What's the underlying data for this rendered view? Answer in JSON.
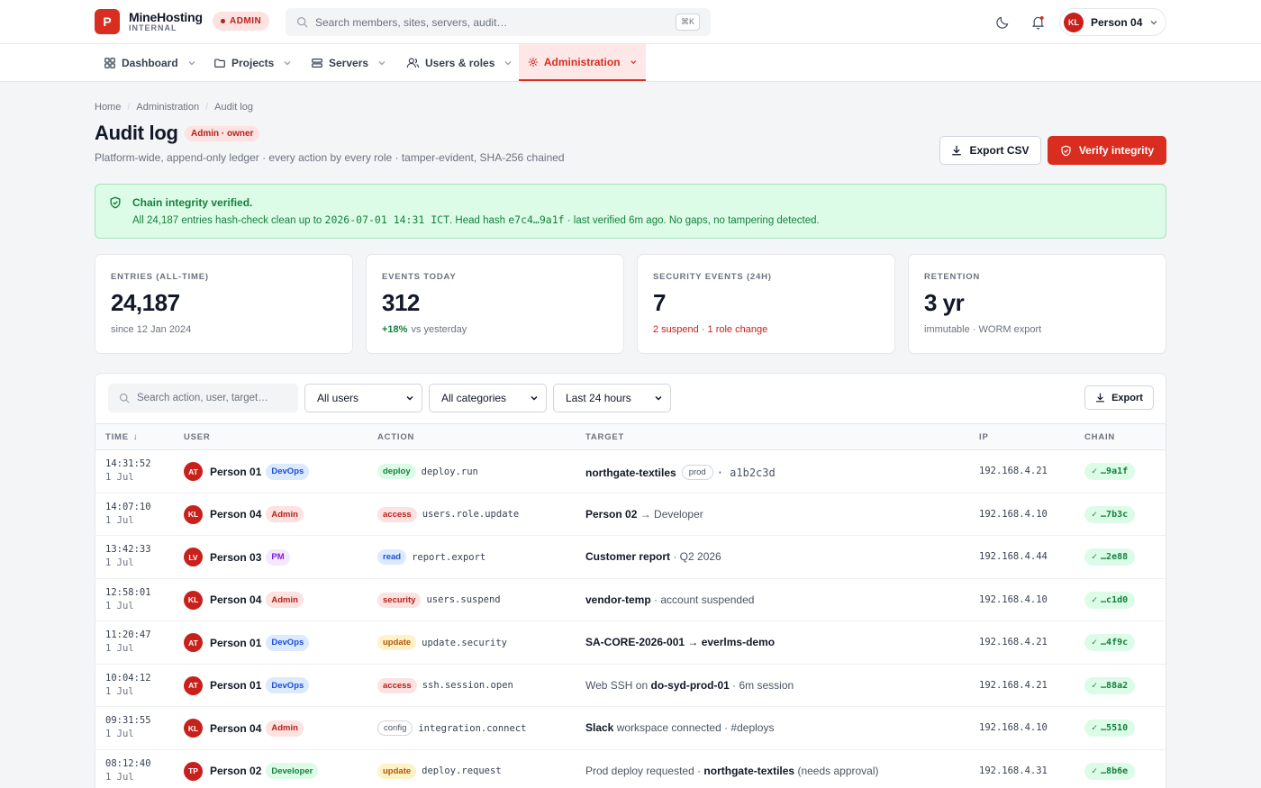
{
  "brand": {
    "logo_letter": "P",
    "name": "MineHosting",
    "sub": "INTERNAL",
    "badge": "ADMIN"
  },
  "top_search": {
    "placeholder": "Search members, sites, servers, audit…",
    "shortcut": "⌘K"
  },
  "user": {
    "initials": "KL",
    "name": "Person 04"
  },
  "nav": {
    "items": [
      {
        "label": "Dashboard",
        "icon": "grid-icon"
      },
      {
        "label": "Projects",
        "icon": "folder-icon"
      },
      {
        "label": "Servers",
        "icon": "server-icon"
      },
      {
        "label": "Users & roles",
        "icon": "users-icon"
      },
      {
        "label": "Administration",
        "icon": "admin-gear-icon",
        "active": true
      }
    ]
  },
  "breadcrumb": [
    "Home",
    "Administration",
    "Audit log"
  ],
  "page": {
    "title": "Audit log",
    "role_badge": "Admin · owner",
    "subtitle": "Platform-wide, append-only ledger · every action by every role · tamper-evident, SHA-256 chained",
    "export_csv": "Export CSV",
    "verify": "Verify integrity"
  },
  "banner": {
    "title": "Chain integrity verified.",
    "desc_prefix": "All 24,187 entries hash-check clean up to ",
    "desc_time": "2026-07-01 14:31 ICT",
    "desc_mid": ". Head hash ",
    "desc_hash": "e7c4…9a1f",
    "desc_suffix": " · last verified 6m ago. No gaps, no tampering detected."
  },
  "stats": [
    {
      "label": "ENTRIES (ALL-TIME)",
      "value": "24,187",
      "note": "since 12 Jan 2024"
    },
    {
      "label": "EVENTS TODAY",
      "value": "312",
      "note_up": "+18%",
      "note": "vs yesterday"
    },
    {
      "label": "SECURITY EVENTS (24H)",
      "value": "7",
      "note": "2 suspend · 1 role change"
    },
    {
      "label": "RETENTION",
      "value": "3 yr",
      "note": "immutable · WORM export"
    }
  ],
  "filters": {
    "search_placeholder": "Search action, user, target…",
    "users": "All users",
    "categories": "All categories",
    "range": "Last 24 hours",
    "export": "Export"
  },
  "table": {
    "headers": {
      "time": "TIME",
      "user": "USER",
      "action": "ACTION",
      "target": "TARGET",
      "ip": "IP",
      "chain": "CHAIN"
    },
    "rows": [
      {
        "time": "14:31:52",
        "date": "1 Jul",
        "initials": "AT",
        "user": "Person 01",
        "role": "DevOps",
        "role_class": "devops",
        "tag": "deploy",
        "action": "deploy.run",
        "t_bold": "northgate-textiles",
        "t_env": "prod",
        "t_rest": "· a1b2c3d",
        "ip": "192.168.4.21",
        "chain": "…9a1f"
      },
      {
        "time": "14:07:10",
        "date": "1 Jul",
        "initials": "KL",
        "user": "Person 04",
        "role": "Admin",
        "role_class": "admin",
        "tag": "access",
        "action": "users.role.update",
        "t_bold": "Person 02",
        "t_env": "",
        "t_rest": " → Developer",
        "ip": "192.168.4.10",
        "chain": "…7b3c"
      },
      {
        "time": "13:42:33",
        "date": "1 Jul",
        "initials": "LV",
        "user": "Person 03",
        "role": "PM",
        "role_class": "pm",
        "tag": "read",
        "action": "report.export",
        "t_bold": "Customer report",
        "t_env": "",
        "t_rest": " · Q2 2026",
        "ip": "192.168.4.44",
        "chain": "…2e88"
      },
      {
        "time": "12:58:01",
        "date": "1 Jul",
        "initials": "KL",
        "user": "Person 04",
        "role": "Admin",
        "role_class": "admin",
        "tag": "security",
        "action": "users.suspend",
        "t_bold": "vendor-temp",
        "t_env": "",
        "t_rest": " · account suspended",
        "ip": "192.168.4.10",
        "chain": "…c1d0"
      },
      {
        "time": "11:20:47",
        "date": "1 Jul",
        "initials": "AT",
        "user": "Person 01",
        "role": "DevOps",
        "role_class": "devops",
        "tag": "update",
        "action": "update.security",
        "t_bold": "SA-CORE-2026-001 → everlms-demo",
        "t_env": "",
        "t_rest": "",
        "ip": "192.168.4.21",
        "chain": "…4f9c"
      },
      {
        "time": "10:04:12",
        "date": "1 Jul",
        "initials": "AT",
        "user": "Person 01",
        "role": "DevOps",
        "role_class": "devops",
        "tag": "access",
        "action": "ssh.session.open",
        "t_pre": "Web SSH on ",
        "t_bold": "do-syd-prod-01",
        "t_env": "",
        "t_rest": " · 6m session",
        "ip": "192.168.4.21",
        "chain": "…88a2"
      },
      {
        "time": "09:31:55",
        "date": "1 Jul",
        "initials": "KL",
        "user": "Person 04",
        "role": "Admin",
        "role_class": "admin",
        "tag": "config",
        "action": "integration.connect",
        "t_bold": "Slack",
        "t_env": "",
        "t_rest": " workspace connected · #deploys",
        "ip": "192.168.4.10",
        "chain": "…5510"
      },
      {
        "time": "08:12:40",
        "date": "1 Jul",
        "initials": "TP",
        "user": "Person 02",
        "role": "Developer",
        "role_class": "developer",
        "tag": "update",
        "action": "deploy.request",
        "t_pre": "Prod deploy requested · ",
        "t_bold": "northgate-textiles",
        "t_env": "",
        "t_rest": " (needs approval)",
        "ip": "192.168.4.31",
        "chain": "…8b6e"
      }
    ]
  },
  "colors": {
    "accent": "#d92d20",
    "success": "#15803d",
    "success_bg": "#dcfce7"
  }
}
